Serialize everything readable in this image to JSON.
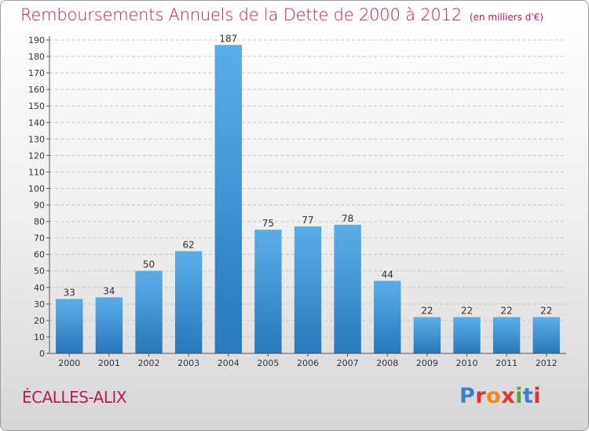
{
  "title": "Remboursements Annuels de la Dette de 2000 à 2012",
  "unit_note": "(en milliers d'€)",
  "commune": "ÉCALLES-ALIX",
  "logo": {
    "text": "Proxiti",
    "colors": [
      "#3b7fd0",
      "#e2312f",
      "#f08a1c",
      "#e2312f",
      "#54a93a",
      "#3b7fd0",
      "#e2312f"
    ]
  },
  "colors": {
    "title": "#c0185a",
    "bar_light": "#5aaee8",
    "bar_dark": "#2878bb",
    "grid": "#c8c8c8"
  },
  "chart_data": {
    "type": "bar",
    "title": "Remboursements Annuels de la Dette de 2000 à 2012",
    "subtitle": "(en milliers d'€)",
    "xlabel": "",
    "ylabel": "",
    "categories": [
      "2000",
      "2001",
      "2002",
      "2003",
      "2004",
      "2005",
      "2006",
      "2007",
      "2008",
      "2009",
      "2010",
      "2011",
      "2012"
    ],
    "values": [
      33,
      34,
      50,
      62,
      187,
      75,
      77,
      78,
      44,
      22,
      22,
      22,
      22
    ],
    "ylim": [
      0,
      190
    ],
    "yticks": [
      0,
      10,
      20,
      30,
      40,
      50,
      60,
      70,
      80,
      90,
      100,
      110,
      120,
      130,
      140,
      150,
      160,
      170,
      180,
      190
    ],
    "grid": true,
    "data_labels": true
  }
}
